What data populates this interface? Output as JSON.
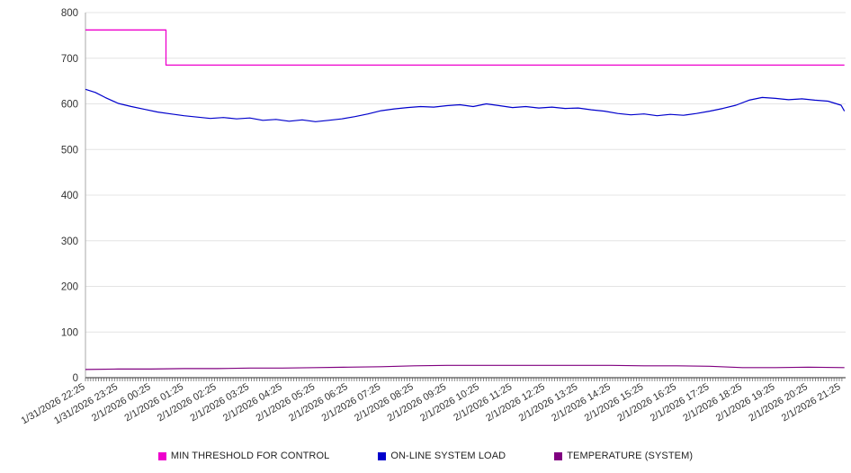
{
  "chart_data": {
    "type": "line",
    "title": "",
    "xlabel": "",
    "ylabel": "",
    "ylim": [
      0,
      800
    ],
    "yticks": [
      0,
      100,
      200,
      300,
      400,
      500,
      600,
      700,
      800
    ],
    "grid": "horizontal",
    "legend_position": "bottom",
    "x_labels": [
      "1/31/2026 22:25",
      "1/31/2026 23:25",
      "2/1/2026 00:25",
      "2/1/2026 01:25",
      "2/1/2026 02:25",
      "2/1/2026 03:25",
      "2/1/2026 04:25",
      "2/1/2026 05:25",
      "2/1/2026 06:25",
      "2/1/2026 07:25",
      "2/1/2026 08:25",
      "2/1/2026 09:25",
      "2/1/2026 10:25",
      "2/1/2026 11:25",
      "2/1/2026 12:25",
      "2/1/2026 13:25",
      "2/1/2026 14:25",
      "2/1/2026 15:25",
      "2/1/2026 16:25",
      "2/1/2026 17:25",
      "2/1/2026 18:25",
      "2/1/2026 19:25",
      "2/1/2026 20:25",
      "2/1/2026 21:25"
    ],
    "x_unit": "hours_from_first_label",
    "series": [
      {
        "name": "MIN THRESHOLD FOR CONTROL",
        "color": "#ee00cc",
        "width": 1.3,
        "points": [
          [
            0,
            762
          ],
          [
            2.45,
            762
          ],
          [
            2.45,
            685
          ],
          [
            23.1,
            685
          ]
        ]
      },
      {
        "name": "ON-LINE SYSTEM LOAD",
        "color": "#0000cc",
        "width": 1.2,
        "points": [
          [
            0,
            632
          ],
          [
            0.3,
            625
          ],
          [
            0.6,
            614
          ],
          [
            1,
            601
          ],
          [
            1.4,
            594
          ],
          [
            1.8,
            588
          ],
          [
            2.2,
            582
          ],
          [
            2.6,
            578
          ],
          [
            3,
            574
          ],
          [
            3.4,
            571
          ],
          [
            3.8,
            568
          ],
          [
            4.2,
            570
          ],
          [
            4.6,
            567
          ],
          [
            5,
            569
          ],
          [
            5.4,
            564
          ],
          [
            5.8,
            566
          ],
          [
            6.2,
            562
          ],
          [
            6.6,
            565
          ],
          [
            7,
            561
          ],
          [
            7.4,
            564
          ],
          [
            7.8,
            567
          ],
          [
            8.2,
            572
          ],
          [
            8.6,
            578
          ],
          [
            9,
            585
          ],
          [
            9.4,
            589
          ],
          [
            9.8,
            592
          ],
          [
            10.2,
            594
          ],
          [
            10.6,
            593
          ],
          [
            11,
            596
          ],
          [
            11.4,
            598
          ],
          [
            11.8,
            594
          ],
          [
            12.2,
            600
          ],
          [
            12.6,
            596
          ],
          [
            13,
            592
          ],
          [
            13.4,
            594
          ],
          [
            13.8,
            591
          ],
          [
            14.2,
            593
          ],
          [
            14.6,
            590
          ],
          [
            15,
            591
          ],
          [
            15.4,
            587
          ],
          [
            15.8,
            584
          ],
          [
            16.2,
            579
          ],
          [
            16.6,
            576
          ],
          [
            17,
            578
          ],
          [
            17.4,
            574
          ],
          [
            17.8,
            577
          ],
          [
            18.2,
            575
          ],
          [
            18.6,
            579
          ],
          [
            19,
            584
          ],
          [
            19.4,
            590
          ],
          [
            19.8,
            597
          ],
          [
            20.2,
            608
          ],
          [
            20.6,
            614
          ],
          [
            21,
            612
          ],
          [
            21.4,
            609
          ],
          [
            21.8,
            611
          ],
          [
            22.2,
            608
          ],
          [
            22.6,
            606
          ],
          [
            23,
            597
          ],
          [
            23.1,
            584
          ]
        ]
      },
      {
        "name": "TEMPERATURE (SYSTEM)",
        "color": "#800080",
        "width": 1.2,
        "points": [
          [
            0,
            18
          ],
          [
            1,
            19
          ],
          [
            2,
            19
          ],
          [
            3,
            20
          ],
          [
            4,
            20
          ],
          [
            5,
            21
          ],
          [
            6,
            21
          ],
          [
            7,
            22
          ],
          [
            8,
            23
          ],
          [
            9,
            24
          ],
          [
            10,
            26
          ],
          [
            11,
            27
          ],
          [
            12,
            27
          ],
          [
            13,
            27
          ],
          [
            14,
            27
          ],
          [
            15,
            27
          ],
          [
            16,
            27
          ],
          [
            17,
            26
          ],
          [
            18,
            26
          ],
          [
            19,
            25
          ],
          [
            20,
            22
          ],
          [
            21,
            22
          ],
          [
            22,
            23
          ],
          [
            23.1,
            22
          ]
        ]
      }
    ]
  },
  "style": {
    "grid_color": "#e4e4e4",
    "axis_color": "#2a2a2a",
    "y_axis_line_color": "#aaaaaa",
    "tick_color": "#555555",
    "label_color": "#333333"
  }
}
